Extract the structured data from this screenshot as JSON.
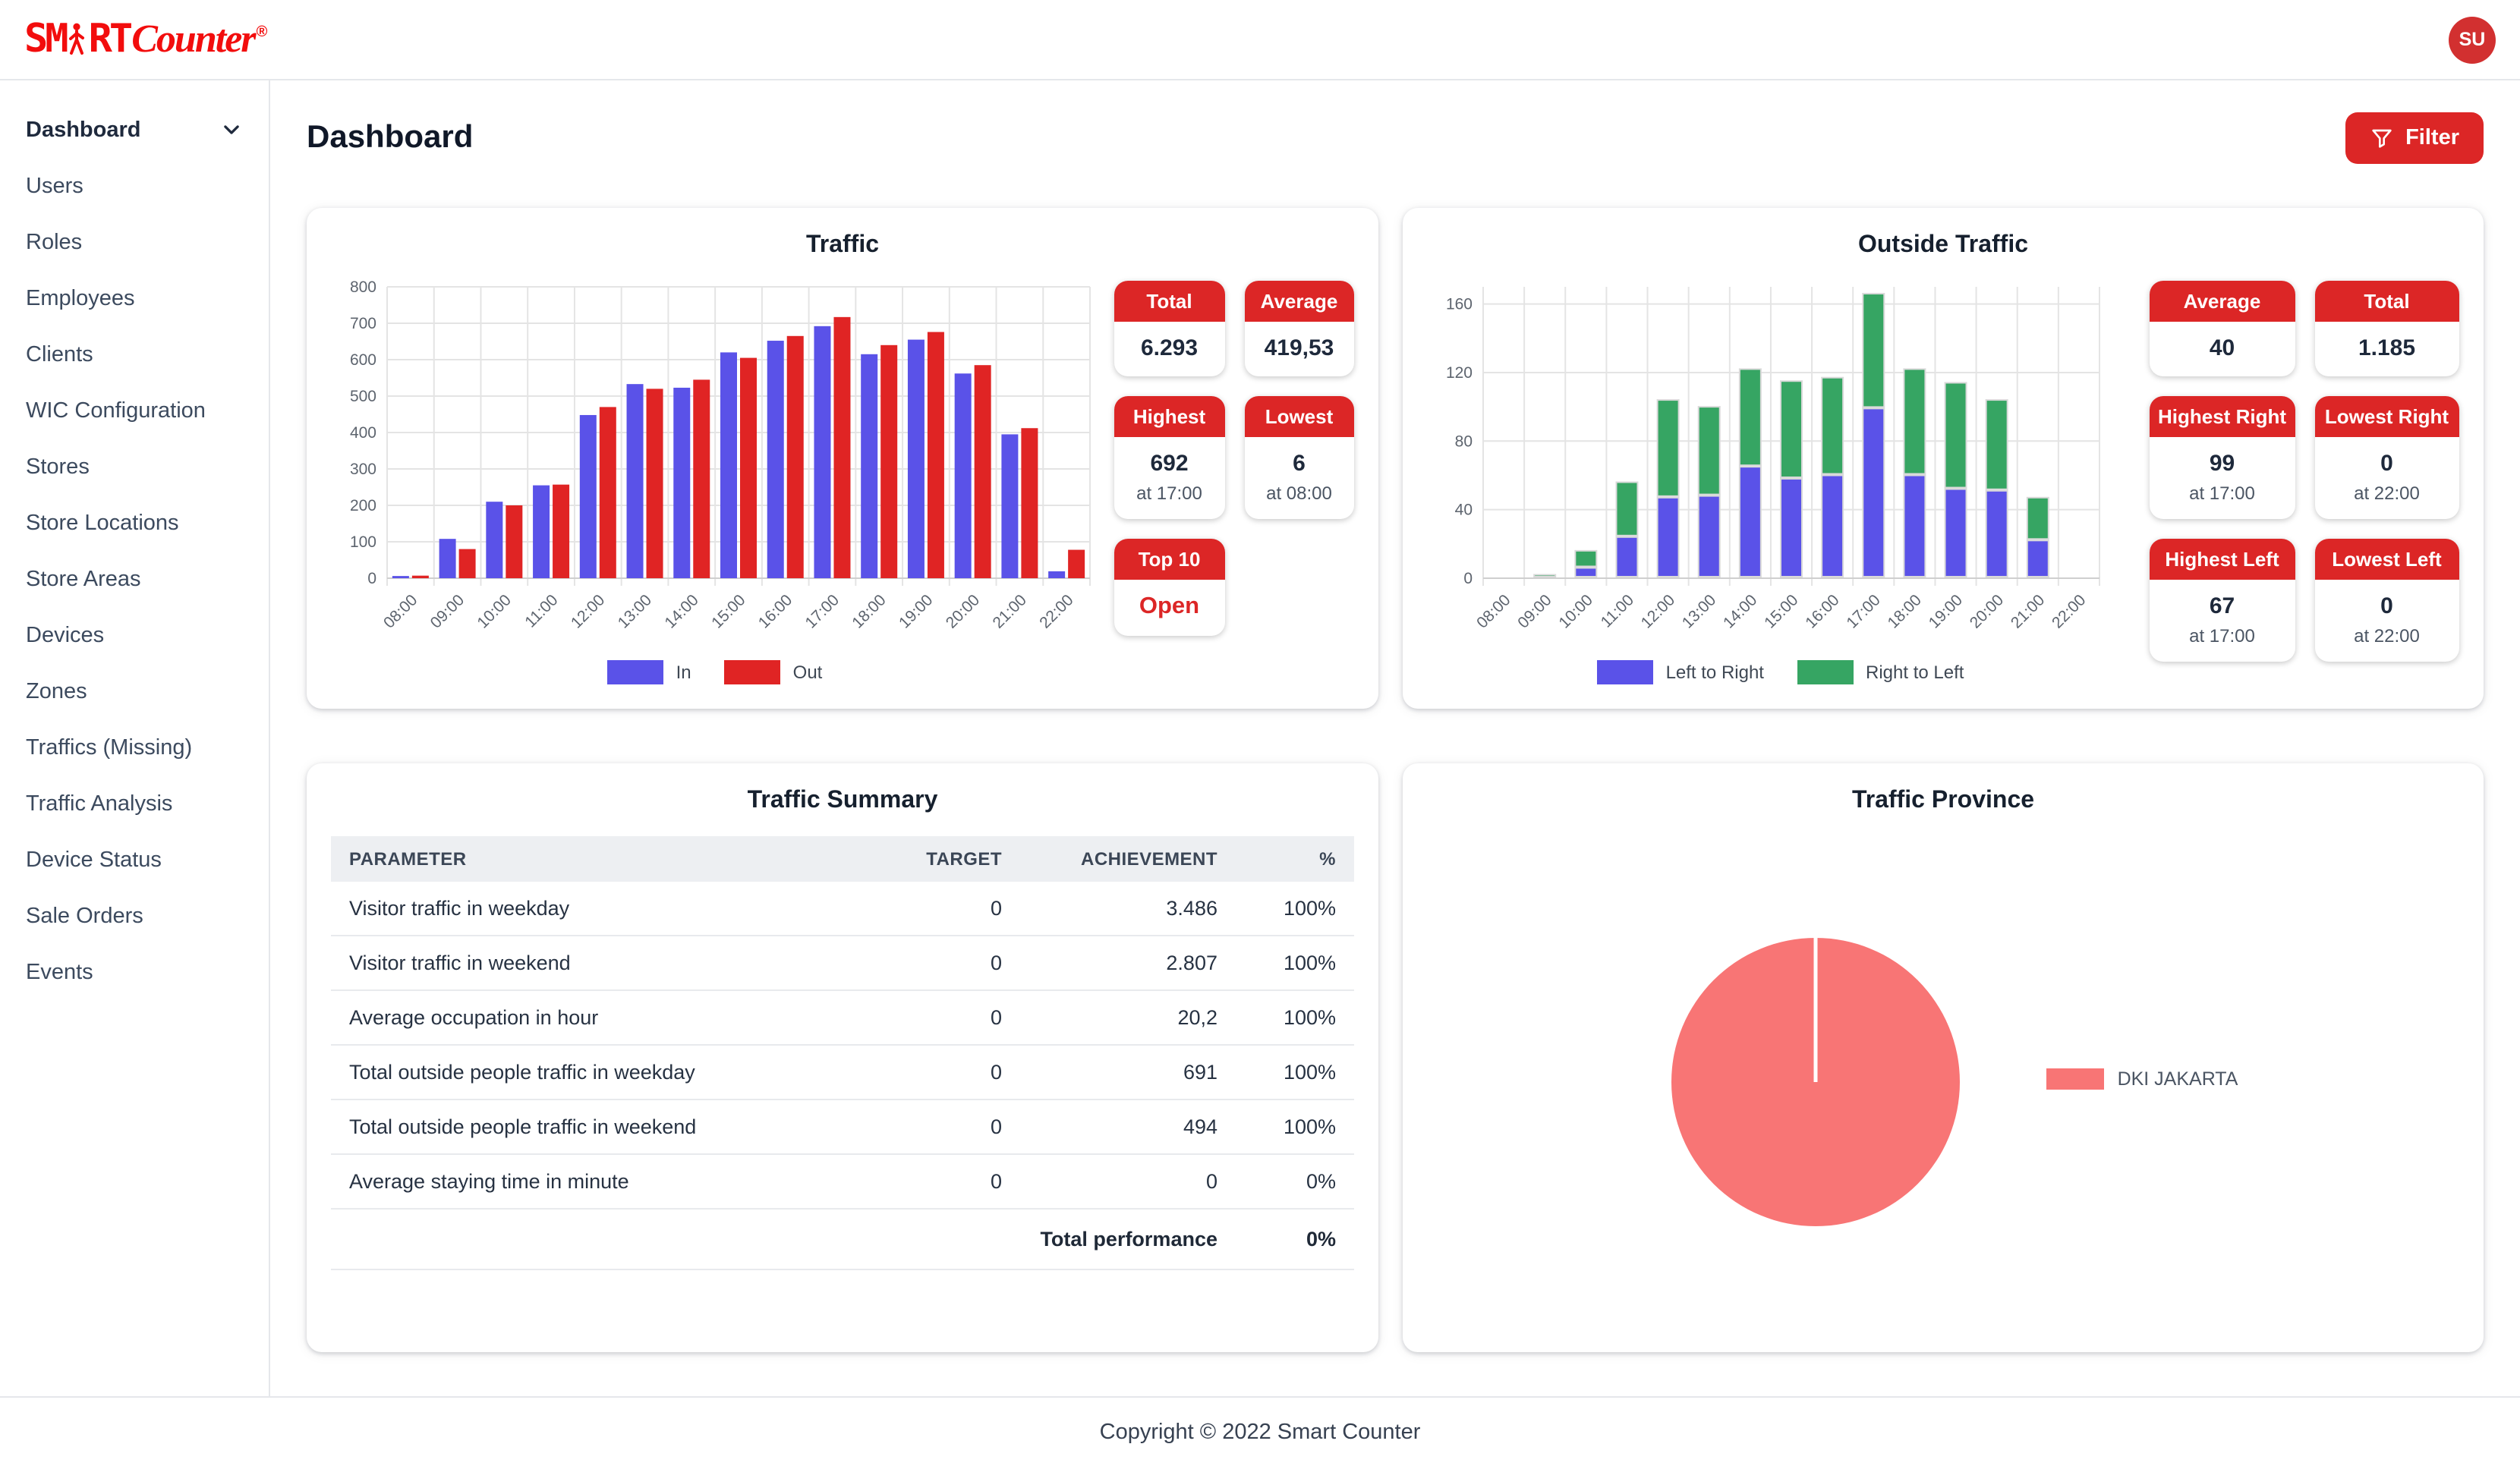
{
  "colors": {
    "accent": "#DC2626",
    "logo": "#F20D0D",
    "avatar": "#D23030",
    "grid": "#E4E4E4",
    "axis_text": "#5D646E"
  },
  "header": {
    "logo_part1": "SM",
    "logo_part2": "RT",
    "logo_script": "Counter",
    "logo_reg": "®",
    "avatar_initials": "SU"
  },
  "sidebar": {
    "items": [
      {
        "label": "Dashboard",
        "active": true,
        "has_chevron": true
      },
      {
        "label": "Users"
      },
      {
        "label": "Roles"
      },
      {
        "label": "Employees"
      },
      {
        "label": "Clients"
      },
      {
        "label": "WIC Configuration"
      },
      {
        "label": "Stores"
      },
      {
        "label": "Store Locations"
      },
      {
        "label": "Store Areas"
      },
      {
        "label": "Devices"
      },
      {
        "label": "Zones"
      },
      {
        "label": "Traffics (Missing)"
      },
      {
        "label": "Traffic Analysis"
      },
      {
        "label": "Device Status"
      },
      {
        "label": "Sale Orders"
      },
      {
        "label": "Events"
      }
    ]
  },
  "page": {
    "title": "Dashboard",
    "filter_label": "Filter"
  },
  "traffic_card": {
    "title": "Traffic",
    "stats": [
      {
        "label": "Total",
        "value": "6.293"
      },
      {
        "label": "Average",
        "value": "419,53"
      },
      {
        "label": "Highest",
        "value": "692",
        "sub": "at 17:00"
      },
      {
        "label": "Lowest",
        "value": "6",
        "sub": "at 08:00"
      },
      {
        "label": "Top 10",
        "value": "Open"
      }
    ]
  },
  "outside_card": {
    "title": "Outside Traffic",
    "stats": [
      {
        "label": "Average",
        "value": "40"
      },
      {
        "label": "Total",
        "value": "1.185"
      },
      {
        "label": "Highest Right",
        "value": "99",
        "sub": "at 17:00"
      },
      {
        "label": "Lowest Right",
        "value": "0",
        "sub": "at 22:00"
      },
      {
        "label": "Highest Left",
        "value": "67",
        "sub": "at 17:00"
      },
      {
        "label": "Lowest Left",
        "value": "0",
        "sub": "at 22:00"
      }
    ]
  },
  "summary_card": {
    "title": "Traffic Summary",
    "columns": [
      "PARAMETER",
      "TARGET",
      "ACHIEVEMENT",
      "%"
    ],
    "rows": [
      [
        "Visitor traffic in weekday",
        "0",
        "3.486",
        "100%"
      ],
      [
        "Visitor traffic in weekend",
        "0",
        "2.807",
        "100%"
      ],
      [
        "Average occupation in hour",
        "0",
        "20,2",
        "100%"
      ],
      [
        "Total outside people traffic in weekday",
        "0",
        "691",
        "100%"
      ],
      [
        "Total outside people traffic in weekend",
        "0",
        "494",
        "100%"
      ],
      [
        "Average staying time in minute",
        "0",
        "0",
        "0%"
      ]
    ],
    "footer_label": "Total performance",
    "footer_value": "0%"
  },
  "province_card": {
    "title": "Traffic Province"
  },
  "footer": {
    "text": "Copyright © 2022 Smart Counter"
  },
  "chart_data": [
    {
      "id": "traffic",
      "type": "bar",
      "title": "Traffic",
      "categories": [
        "08:00",
        "09:00",
        "10:00",
        "11:00",
        "12:00",
        "13:00",
        "14:00",
        "15:00",
        "16:00",
        "17:00",
        "18:00",
        "19:00",
        "20:00",
        "21:00",
        "22:00"
      ],
      "series": [
        {
          "name": "In",
          "color": "#5A52E8",
          "values": [
            6,
            108,
            210,
            255,
            448,
            533,
            523,
            620,
            652,
            692,
            615,
            655,
            562,
            395,
            19
          ]
        },
        {
          "name": "Out",
          "color": "#E02424",
          "values": [
            7,
            80,
            200,
            257,
            470,
            520,
            545,
            605,
            665,
            717,
            640,
            676,
            585,
            412,
            78
          ]
        }
      ],
      "ylim": [
        0,
        800
      ],
      "ytick_step": 100,
      "grid": true,
      "legend_position": "bottom"
    },
    {
      "id": "outside",
      "type": "bar",
      "stacked": true,
      "title": "Outside Traffic",
      "categories": [
        "08:00",
        "09:00",
        "10:00",
        "11:00",
        "12:00",
        "13:00",
        "14:00",
        "15:00",
        "16:00",
        "17:00",
        "18:00",
        "19:00",
        "20:00",
        "21:00",
        "22:00"
      ],
      "series": [
        {
          "name": "Left to Right",
          "color": "#5A52E8",
          "values": [
            0,
            0,
            6,
            24,
            47,
            48,
            65,
            58,
            60,
            99,
            60,
            52,
            51,
            22,
            0
          ]
        },
        {
          "name": "Right to Left",
          "color": "#36A563",
          "values": [
            0,
            2,
            10,
            32,
            57,
            52,
            57,
            57,
            57,
            67,
            62,
            62,
            53,
            25,
            0
          ]
        }
      ],
      "ylim": [
        0,
        170
      ],
      "yticks": [
        0,
        40,
        80,
        120,
        160
      ],
      "grid": true,
      "legend_position": "bottom"
    },
    {
      "id": "province",
      "type": "pie",
      "title": "Traffic Province",
      "slices": [
        {
          "label": "DKI JAKARTA",
          "value": 100,
          "color": "#F87575"
        }
      ],
      "legend_position": "right"
    }
  ]
}
